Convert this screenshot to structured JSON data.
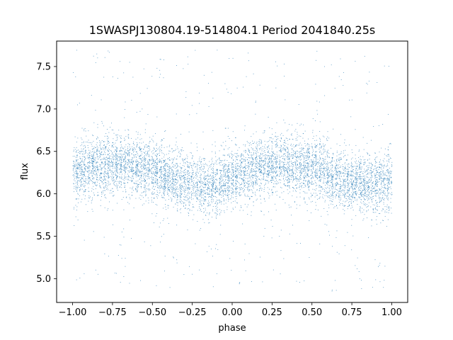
{
  "chart_data": {
    "type": "scatter",
    "title": "1SWASPJ130804.19-514804.1 Period 2041840.25s",
    "xlabel": "phase",
    "ylabel": "flux",
    "xlim": [
      -1.1,
      1.1
    ],
    "ylim": [
      4.72,
      7.8
    ],
    "xticks": [
      -1.0,
      -0.75,
      -0.5,
      -0.25,
      0.0,
      0.25,
      0.5,
      0.75,
      1.0
    ],
    "xtick_labels": [
      "−1.00",
      "−0.75",
      "−0.50",
      "−0.25",
      "0.00",
      "0.25",
      "0.50",
      "0.75",
      "1.00"
    ],
    "yticks": [
      5.0,
      5.5,
      6.0,
      6.5,
      7.0,
      7.5
    ],
    "ytick_labels": [
      "5.0",
      "5.5",
      "6.0",
      "6.5",
      "7.0",
      "7.5"
    ],
    "marker_color": "#1f77b4",
    "grid": false,
    "legend": "none",
    "x_range": [
      -1.0,
      1.0
    ],
    "series": [
      {
        "profile_x": [
          -1.0,
          -0.9,
          -0.8,
          -0.7,
          -0.6,
          -0.5,
          -0.45,
          -0.4,
          -0.3,
          -0.2,
          -0.1,
          0.0,
          0.1,
          0.2,
          0.3,
          0.4,
          0.5,
          0.55,
          0.6,
          0.7,
          0.8,
          0.9,
          1.0
        ],
        "profile_median_flux": [
          6.25,
          6.3,
          6.35,
          6.35,
          6.32,
          6.3,
          6.25,
          6.18,
          6.12,
          6.1,
          6.12,
          6.2,
          6.28,
          6.33,
          6.35,
          6.35,
          6.32,
          6.3,
          6.22,
          6.15,
          6.12,
          6.12,
          6.15
        ],
        "typical_spread": 0.25,
        "outlier_range": [
          4.85,
          7.7
        ]
      }
    ]
  }
}
